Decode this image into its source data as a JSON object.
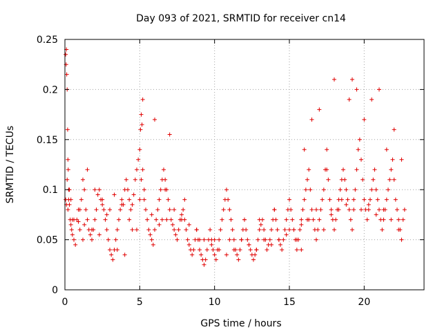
{
  "chart_data": {
    "type": "scatter",
    "title": "Day 093 of 2021, SRMTID for receiver cn14",
    "xlabel": "GPS time / hours",
    "ylabel": "SRMTID / TECUs",
    "xlim": [
      0,
      24
    ],
    "ylim": [
      0,
      0.25
    ],
    "x_ticks": [
      0,
      5,
      10,
      15,
      20
    ],
    "x_tick_labels": [
      "0",
      "5",
      "10",
      "15",
      "20"
    ],
    "y_ticks": [
      0,
      0.05,
      0.1,
      0.15,
      0.2,
      0.25
    ],
    "y_tick_labels": [
      "0",
      "0.05",
      "0.1",
      "0.15",
      "0.2",
      "0.25"
    ],
    "grid": true,
    "marker": "+",
    "color": "#e00000",
    "series": [
      {
        "name": "SRMTID",
        "x": [
          0.05,
          0.08,
          0.1,
          0.12,
          0.15,
          0.18,
          0.2,
          0.22,
          0.25,
          0.3,
          0.35,
          0.4,
          0.45,
          0.5,
          0.6,
          0.7,
          0.8,
          0.9,
          1.0,
          1.1,
          1.2,
          1.3,
          1.4,
          1.5,
          1.6,
          1.7,
          1.8,
          1.9,
          2.0,
          2.1,
          2.2,
          2.3,
          2.4,
          2.5,
          2.6,
          2.7,
          2.8,
          2.9,
          3.0,
          3.1,
          3.2,
          3.3,
          3.4,
          3.5,
          3.6,
          3.7,
          3.8,
          3.9,
          4.0,
          4.1,
          4.2,
          4.3,
          4.4,
          4.5,
          4.6,
          4.7,
          4.8,
          4.9,
          5.0,
          5.05,
          5.1,
          5.15,
          5.2,
          5.3,
          5.4,
          5.5,
          5.6,
          5.7,
          5.8,
          5.9,
          6.0,
          6.1,
          6.2,
          6.3,
          6.4,
          6.5,
          6.6,
          6.7,
          6.8,
          6.9,
          7.0,
          7.1,
          7.2,
          7.3,
          7.4,
          7.5,
          7.6,
          7.7,
          7.8,
          7.9,
          8.0,
          8.1,
          8.2,
          8.3,
          8.4,
          8.5,
          8.6,
          8.7,
          8.8,
          8.9,
          9.0,
          9.1,
          9.2,
          9.3,
          9.4,
          9.5,
          9.6,
          9.7,
          9.8,
          9.9,
          10.0,
          10.1,
          10.2,
          10.3,
          10.4,
          10.5,
          10.6,
          10.7,
          10.8,
          10.9,
          11.0,
          11.1,
          11.2,
          11.3,
          11.4,
          11.5,
          11.6,
          11.7,
          11.8,
          11.9,
          12.0,
          12.1,
          12.2,
          12.3,
          12.4,
          12.5,
          12.6,
          12.7,
          12.8,
          12.9,
          13.0,
          13.1,
          13.2,
          13.3,
          13.4,
          13.5,
          13.6,
          13.7,
          13.8,
          13.9,
          14.0,
          14.1,
          14.2,
          14.3,
          14.4,
          14.5,
          14.6,
          14.7,
          14.8,
          14.9,
          15.0,
          15.1,
          15.2,
          15.3,
          15.4,
          15.5,
          15.6,
          15.7,
          15.8,
          15.9,
          16.0,
          16.1,
          16.2,
          16.3,
          16.4,
          16.5,
          16.6,
          16.7,
          16.8,
          16.9,
          17.0,
          17.1,
          17.2,
          17.3,
          17.4,
          17.5,
          17.6,
          17.7,
          17.8,
          17.9,
          18.0,
          18.1,
          18.2,
          18.3,
          18.4,
          18.5,
          18.6,
          18.7,
          18.8,
          18.9,
          19.0,
          19.1,
          19.2,
          19.3,
          19.4,
          19.5,
          19.6,
          19.7,
          19.8,
          19.9,
          20.0,
          20.1,
          20.2,
          20.3,
          20.4,
          20.5,
          20.6,
          20.7,
          20.8,
          20.9,
          21.0,
          21.1,
          21.2,
          21.3,
          21.4,
          21.5,
          21.6,
          21.7,
          21.8,
          21.9,
          22.0,
          22.1,
          22.2,
          22.3,
          22.4,
          22.5,
          22.6,
          22.7,
          0.05,
          0.1,
          0.2,
          0.3,
          0.4,
          0.5,
          1.0,
          1.2,
          1.5,
          2.0,
          2.5,
          3.0,
          3.5,
          4.0,
          4.5,
          5.0,
          5.1,
          5.2,
          6.0,
          6.5,
          6.7,
          7.0,
          8.0,
          9.0,
          10.0,
          11.0,
          12.0,
          13.0,
          14.0,
          15.0,
          15.5,
          15.8,
          16.0,
          16.2,
          16.5,
          17.0,
          17.5,
          18.0,
          18.5,
          19.0,
          19.2,
          19.5,
          20.0,
          20.5,
          21.0,
          21.5,
          22.0,
          22.5,
          0.15,
          0.25,
          0.6,
          0.9,
          1.3,
          1.8,
          2.3,
          2.8,
          3.3,
          3.8,
          4.3,
          4.8,
          5.3,
          5.8,
          6.3,
          6.8,
          7.3,
          7.8,
          8.3,
          8.8,
          9.3,
          9.8,
          10.3,
          10.8,
          11.3,
          11.8,
          12.3,
          12.8,
          13.3,
          13.8,
          14.3,
          14.8,
          15.3,
          15.8,
          16.3,
          16.8,
          17.3,
          17.8,
          18.3,
          18.8,
          19.3,
          19.8,
          20.3,
          20.8,
          21.3,
          21.8,
          22.3
        ],
        "y": [
          0.235,
          0.225,
          0.24,
          0.215,
          0.2,
          0.16,
          0.13,
          0.12,
          0.1,
          0.085,
          0.07,
          0.065,
          0.06,
          0.055,
          0.05,
          0.045,
          0.07,
          0.068,
          0.08,
          0.09,
          0.11,
          0.1,
          0.08,
          0.07,
          0.06,
          0.055,
          0.05,
          0.06,
          0.07,
          0.08,
          0.095,
          0.1,
          0.09,
          0.085,
          0.08,
          0.07,
          0.06,
          0.05,
          0.04,
          0.035,
          0.03,
          0.04,
          0.05,
          0.06,
          0.07,
          0.08,
          0.09,
          0.085,
          0.1,
          0.11,
          0.1,
          0.09,
          0.08,
          0.085,
          0.095,
          0.11,
          0.12,
          0.13,
          0.14,
          0.16,
          0.175,
          0.165,
          0.12,
          0.1,
          0.08,
          0.07,
          0.06,
          0.055,
          0.05,
          0.045,
          0.06,
          0.07,
          0.08,
          0.09,
          0.1,
          0.11,
          0.12,
          0.11,
          0.1,
          0.09,
          0.08,
          0.07,
          0.065,
          0.06,
          0.055,
          0.05,
          0.06,
          0.07,
          0.075,
          0.08,
          0.07,
          0.06,
          0.05,
          0.045,
          0.04,
          0.035,
          0.04,
          0.05,
          0.06,
          0.05,
          0.04,
          0.035,
          0.03,
          0.025,
          0.03,
          0.04,
          0.05,
          0.06,
          0.05,
          0.04,
          0.035,
          0.03,
          0.04,
          0.05,
          0.06,
          0.07,
          0.08,
          0.09,
          0.1,
          0.09,
          0.08,
          0.07,
          0.06,
          0.05,
          0.04,
          0.035,
          0.03,
          0.04,
          0.05,
          0.06,
          0.07,
          0.06,
          0.05,
          0.045,
          0.04,
          0.035,
          0.03,
          0.035,
          0.04,
          0.05,
          0.06,
          0.065,
          0.07,
          0.06,
          0.05,
          0.04,
          0.045,
          0.05,
          0.06,
          0.07,
          0.08,
          0.07,
          0.06,
          0.05,
          0.045,
          0.04,
          0.05,
          0.06,
          0.07,
          0.08,
          0.09,
          0.08,
          0.07,
          0.06,
          0.05,
          0.04,
          0.05,
          0.06,
          0.07,
          0.08,
          0.09,
          0.1,
          0.11,
          0.12,
          0.1,
          0.08,
          0.07,
          0.06,
          0.05,
          0.06,
          0.07,
          0.08,
          0.09,
          0.1,
          0.12,
          0.14,
          0.11,
          0.09,
          0.08,
          0.07,
          0.06,
          0.07,
          0.08,
          0.09,
          0.1,
          0.11,
          0.12,
          0.11,
          0.1,
          0.09,
          0.08,
          0.07,
          0.06,
          0.08,
          0.1,
          0.12,
          0.14,
          0.15,
          0.13,
          0.11,
          0.09,
          0.08,
          0.07,
          0.08,
          0.09,
          0.1,
          0.11,
          0.12,
          0.1,
          0.09,
          0.08,
          0.07,
          0.06,
          0.07,
          0.08,
          0.09,
          0.1,
          0.11,
          0.12,
          0.13,
          0.11,
          0.09,
          0.08,
          0.07,
          0.06,
          0.05,
          0.07,
          0.08,
          0.09,
          0.085,
          0.08,
          0.1,
          0.09,
          0.07,
          0.06,
          0.05,
          0.12,
          0.1,
          0.09,
          0.08,
          0.04,
          0.035,
          0.06,
          0.09,
          0.11,
          0.19,
          0.17,
          0.07,
          0.1,
          0.155,
          0.09,
          0.05,
          0.05,
          0.05,
          0.07,
          0.07,
          0.08,
          0.06,
          0.05,
          0.04,
          0.14,
          0.07,
          0.17,
          0.18,
          0.12,
          0.21,
          0.09,
          0.19,
          0.21,
          0.2,
          0.17,
          0.19,
          0.2,
          0.14,
          0.16,
          0.13,
          0.11,
          0.09,
          0.07,
          0.08,
          0.065,
          0.06,
          0.055,
          0.075,
          0.095,
          0.085,
          0.07,
          0.06,
          0.09,
          0.075,
          0.065,
          0.07,
          0.08,
          0.07,
          0.065,
          0.06,
          0.05,
          0.045,
          0.04,
          0.035,
          0.04,
          0.05,
          0.045,
          0.04,
          0.05,
          0.045,
          0.05,
          0.055,
          0.06,
          0.065,
          0.07,
          0.08,
          0.06,
          0.075,
          0.08,
          0.085,
          0.09,
          0.08,
          0.085,
          0.075,
          0.08,
          0.07,
          0.06
        ]
      }
    ]
  }
}
